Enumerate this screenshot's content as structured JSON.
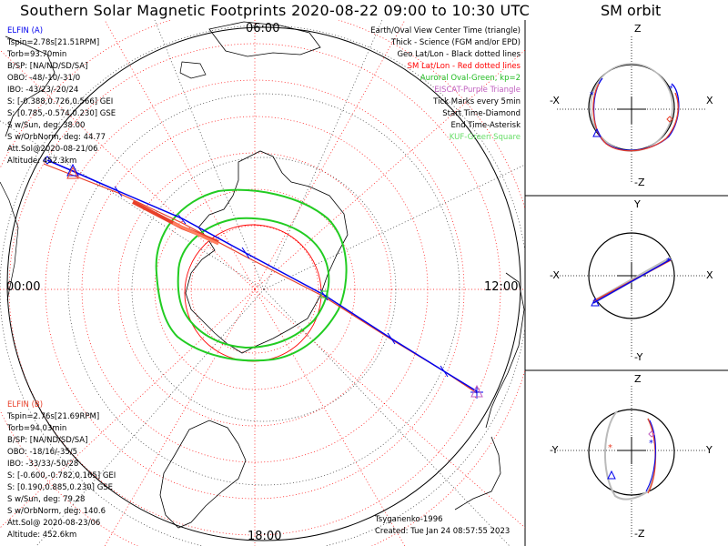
{
  "title": "Southern Solar Magnetic Footprints 2020-08-22 09:00 to 10:30 UTC",
  "map": {
    "top_label": "06:00",
    "left_label": "00:00",
    "right_label": "12:00",
    "bottom_label": "18:00"
  },
  "elfin_a": {
    "name": "ELFIN (A)",
    "lines": [
      "Tspin=2.78s[21.51RPM]",
      "Torb=93.70min",
      "B/SP: [NA/ND/SD/SA]",
      "OBO: -48/-10/-31/0",
      "IBO: -43/23/-20/24",
      "S: [-0.388,0.726,0.566] GEI",
      "S: [0.785,-0.574,0.230] GSE",
      "S w/Sun, deg: 38.00",
      "S w/OrbNorm, deg: 44.77",
      "Att.Sol@2020-08-21/06",
      "Altitude: 452.3km"
    ]
  },
  "elfin_b": {
    "name": "ELFIN (B)",
    "lines": [
      "Tspin=2.76s[21.69RPM]",
      "Torb=94.03min",
      "B/SP: [NA/ND/SD/SA]",
      "OBO: -18/16/-35/5",
      "IBO: -33/33/-50/28",
      "S: [-0.600,-0.782,0.165] GEI",
      "S: [0.190,0.885,0.230] GSE",
      "S w/Sun, deg: 79.28",
      "S w/OrbNorm, deg: 140.6",
      "Att.Sol@ 2020-08-23/06",
      "Altitude: 452.6km"
    ]
  },
  "legend": [
    {
      "text": "Earth/Oval View Center Time (triangle)",
      "color": "#000000"
    },
    {
      "text": "Thick - Science (FGM and/or EPD)",
      "color": "#000000"
    },
    {
      "text": "Geo Lat/Lon - Black dotted lines",
      "color": "#000000"
    },
    {
      "text": "SM Lat/Lon - Red dotted lines",
      "color": "#ff0000"
    },
    {
      "text": "Auroral Oval-Green, kp=2",
      "color": "#22bb22"
    },
    {
      "text": "EISCAT-Purple Triangle",
      "color": "#c060c0"
    },
    {
      "text": "Tick Marks every 5min",
      "color": "#000000"
    },
    {
      "text": "Start Time-Diamond",
      "color": "#000000"
    },
    {
      "text": "End Time-Asterisk",
      "color": "#000000"
    },
    {
      "text": "KUF-Green Square",
      "color": "#66dd66"
    }
  ],
  "footer": {
    "credit": "Tsyganenko-1996",
    "created": "Created: Tue Jan 24 08:57:55 2023"
  },
  "sm_orbit": {
    "title": "SM orbit",
    "panels": [
      {
        "top": "Z",
        "bottom": "-Z",
        "left": "-X",
        "right": "X"
      },
      {
        "top": "Y",
        "bottom": "-Y",
        "left": "-X",
        "right": "X"
      },
      {
        "top": "Z",
        "bottom": "-Z",
        "left": "-Y",
        "right": "Y"
      }
    ]
  },
  "colors": {
    "elfin_a": "#0000ee",
    "elfin_b": "#e8402a",
    "oval": "#22cc22",
    "sm_grid": "#ff0000"
  }
}
